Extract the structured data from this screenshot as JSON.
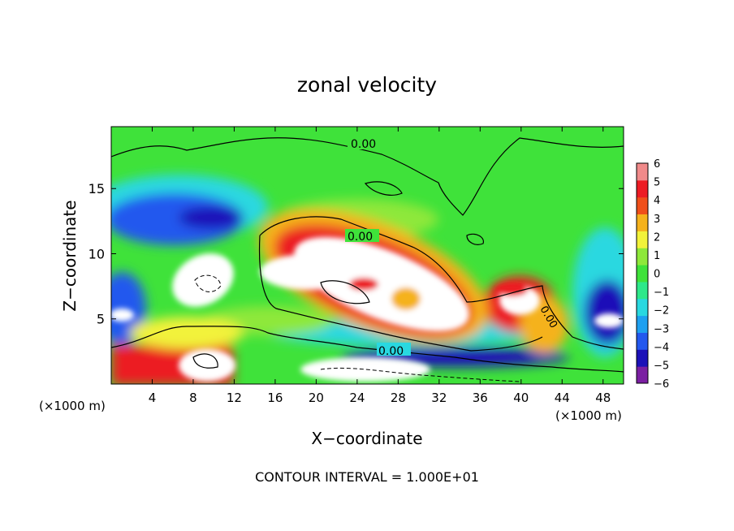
{
  "chart_data": {
    "type": "heatmap",
    "title": "zonal velocity",
    "xlabel": "X−coordinate",
    "ylabel": "Z−coordinate",
    "x_unit_left": "(×1000 m)",
    "x_unit_right": "(×1000 m)",
    "footer": "CONTOUR INTERVAL = 1.000E+01",
    "xlim": [
      0,
      50
    ],
    "ylim": [
      0,
      19.75
    ],
    "x_ticks": [
      4,
      8,
      12,
      16,
      20,
      24,
      28,
      32,
      36,
      40,
      44,
      48
    ],
    "x_tick_labels": [
      "4",
      "8",
      "12",
      "16",
      "20",
      "24",
      "28",
      "32",
      "36",
      "40",
      "44",
      "48"
    ],
    "y_ticks": [
      5,
      10,
      15
    ],
    "y_tick_labels": [
      "5",
      "10",
      "15"
    ],
    "colorbar": {
      "min": -6,
      "max": 6,
      "ticks": [
        6,
        5,
        4,
        3,
        2,
        1,
        0,
        -1,
        -2,
        -3,
        -4,
        -5,
        -6
      ],
      "tick_labels": [
        "6",
        "5",
        "4",
        "3",
        "2",
        "1",
        "0",
        "−1",
        "−2",
        "−3",
        "−4",
        "−5",
        "−6"
      ],
      "colors": [
        "#7b1fa2",
        "#1c11b8",
        "#2358ee",
        "#1ea0f0",
        "#29d8e0",
        "#2ee88a",
        "#3fe23a",
        "#8ee83a",
        "#f2f23a",
        "#f5b21c",
        "#ef4f1a",
        "#ec1c24",
        "#f08a8a"
      ]
    },
    "contour_labels": [
      "0.00",
      "0.00",
      "0.00",
      "0.00"
    ]
  }
}
